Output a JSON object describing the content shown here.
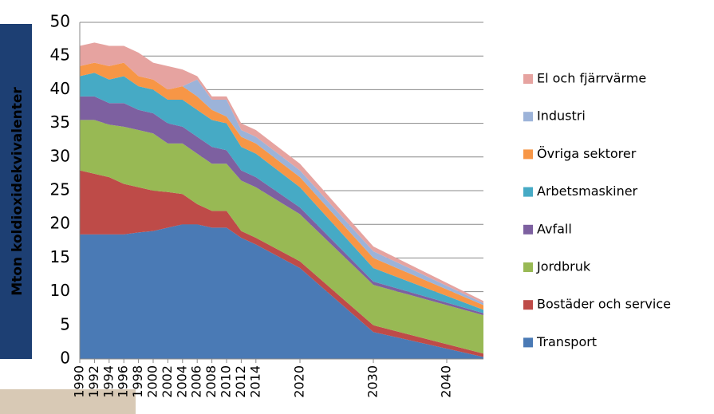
{
  "chart_data": {
    "type": "stacked_area",
    "y_label": "Mton koldioxidekvivalenter",
    "x": [
      1990,
      1992,
      1994,
      1996,
      1998,
      2000,
      2002,
      2004,
      2006,
      2008,
      2010,
      2012,
      2014,
      2020,
      2030,
      2045
    ],
    "xlim": [
      1990,
      2045
    ],
    "xticks": [
      1990,
      1992,
      1994,
      1996,
      1998,
      2000,
      2002,
      2004,
      2006,
      2008,
      2010,
      2012,
      2014,
      2020,
      2030,
      2040
    ],
    "ylim": [
      0,
      50
    ],
    "yticks": [
      0,
      5,
      10,
      15,
      20,
      25,
      30,
      35,
      40,
      45,
      50
    ],
    "grid": true,
    "series": [
      {
        "name": "Transport",
        "color": "#4a7ab5",
        "values": [
          18.5,
          18.5,
          18.5,
          18.5,
          18.8,
          19,
          19.5,
          20,
          20,
          19.5,
          19.5,
          18,
          17,
          13.5,
          4,
          0.3
        ]
      },
      {
        "name": "Bostäder och service",
        "color": "#be4b48",
        "values": [
          9.5,
          9,
          8.5,
          7.5,
          6.7,
          6,
          5.3,
          4.5,
          3,
          2.5,
          2.5,
          1,
          1,
          1,
          1,
          0.5
        ]
      },
      {
        "name": "Jordbruk",
        "color": "#98b954",
        "values": [
          7.5,
          8,
          7.8,
          8.5,
          8.5,
          8.5,
          7.2,
          7.5,
          7.5,
          7,
          7,
          7.5,
          7.5,
          7,
          6,
          5.7
        ]
      },
      {
        "name": "Avfall",
        "color": "#7d60a0",
        "values": [
          3.5,
          3.5,
          3.2,
          3.5,
          3,
          3,
          3,
          2.5,
          2.5,
          2.5,
          2,
          1.5,
          1.5,
          1,
          0.5,
          0.3
        ]
      },
      {
        "name": "Arbetsmaskiner",
        "color": "#46aac5",
        "values": [
          3,
          3.5,
          3.5,
          4,
          3.5,
          3.5,
          3.5,
          4,
          4,
          4,
          4,
          3.5,
          3.5,
          3,
          2,
          0.5
        ]
      },
      {
        "name": "Övriga sektorer",
        "color": "#f79646",
        "values": [
          1.5,
          1.5,
          2,
          2,
          1.5,
          1.5,
          1.5,
          2,
          2,
          1.5,
          1,
          1.5,
          1.5,
          1.5,
          1.5,
          0.7
        ]
      },
      {
        "name": "Industri",
        "color": "#9cb3d9",
        "values": [
          0,
          0,
          0,
          0,
          0,
          0,
          0,
          0,
          2.5,
          1.5,
          2.5,
          1,
          1,
          1,
          1,
          0.3
        ]
      },
      {
        "name": "El och fjärrvärme",
        "color": "#e6a3a0",
        "values": [
          3,
          3,
          3,
          2.5,
          3.5,
          2.5,
          3.5,
          2.5,
          0.5,
          0.5,
          0.5,
          1,
          1,
          1,
          0.7,
          0.3
        ]
      }
    ]
  }
}
